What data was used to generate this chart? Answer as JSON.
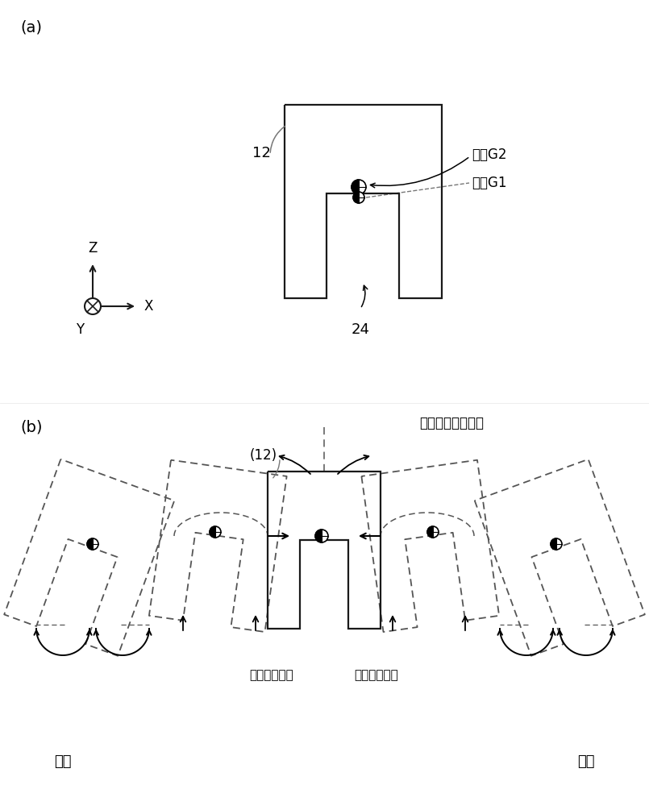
{
  "fig_width": 8.05,
  "fig_height": 10.0,
  "bg_color": "#ffffff",
  "label_a": "(a)",
  "label_b": "(b)",
  "label_12_a": "12",
  "label_24": "24",
  "label_12b": "(12)",
  "label_g1": "重心G1",
  "label_g2": "重心G2",
  "label_twist": "扭转振动位移方向",
  "label_vib1": "振动位移方向",
  "label_vib2": "振动位移方向",
  "label_bend_left": "弯矩",
  "label_bend_right": "弯矩",
  "shape_color": "#1a1a1a",
  "dashed_color": "#555555",
  "gray_color": "#777777"
}
